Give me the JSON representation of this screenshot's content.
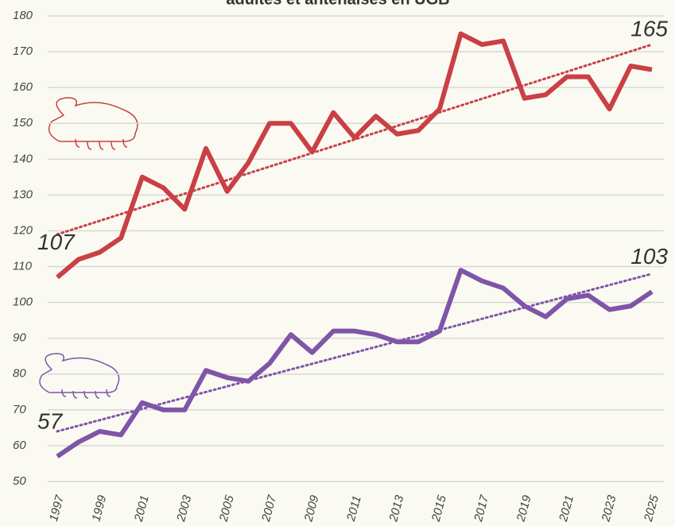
{
  "chart_data": {
    "type": "line",
    "title": "adultes et antenaises en UGB",
    "categories": [
      "1997",
      null,
      "1999",
      null,
      "2001",
      null,
      "2003",
      null,
      "2005",
      null,
      "2007",
      null,
      "2009",
      null,
      "2011",
      null,
      "2013",
      null,
      "2015",
      null,
      "2017",
      null,
      "2019",
      null,
      "2021",
      null,
      "2023",
      null,
      "2025"
    ],
    "series": [
      {
        "color": "#c94045",
        "trend": [
          119,
          172
        ],
        "values": [
          107,
          112,
          114,
          118,
          135,
          132,
          126,
          143,
          131,
          139,
          150,
          150,
          142,
          153,
          146,
          152,
          147,
          148,
          154,
          175,
          172,
          173,
          157,
          158,
          163,
          163,
          154,
          166,
          165
        ],
        "value_labels": [
          "107",
          null,
          null,
          null,
          null,
          null,
          null,
          null,
          null,
          null,
          null,
          null,
          null,
          null,
          null,
          null,
          null,
          null,
          null,
          null,
          null,
          null,
          null,
          null,
          null,
          null,
          null,
          null,
          "165"
        ]
      },
      {
        "color": "#7e55a8",
        "trend": [
          64,
          108
        ],
        "values": [
          57,
          61,
          64,
          63,
          72,
          70,
          70,
          81,
          79,
          78,
          83,
          91,
          86,
          92,
          92,
          91,
          89,
          89,
          92,
          109,
          106,
          104,
          99,
          96,
          101,
          102,
          98,
          99,
          103
        ],
        "value_labels": [
          "57",
          null,
          null,
          null,
          null,
          null,
          null,
          null,
          null,
          null,
          null,
          null,
          null,
          null,
          null,
          null,
          null,
          null,
          null,
          null,
          null,
          null,
          null,
          null,
          null,
          null,
          null,
          null,
          "103"
        ]
      }
    ],
    "ylim": [
      50,
      180
    ],
    "yticks": [
      50,
      60,
      70,
      80,
      90,
      100,
      110,
      120,
      130,
      140,
      150,
      160,
      170,
      180
    ],
    "grid": true
  }
}
